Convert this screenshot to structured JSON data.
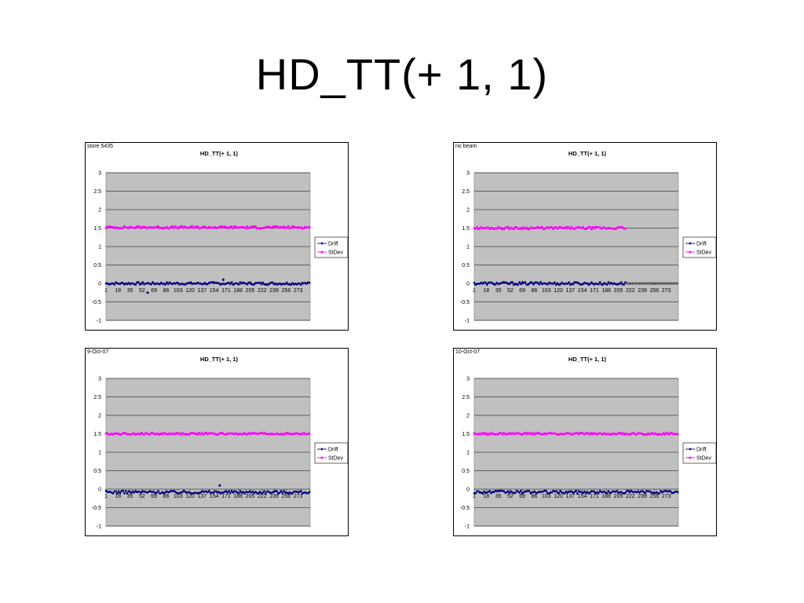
{
  "slide": {
    "title": "HD_TT(+ 1, 1)"
  },
  "colors": {
    "drift": "#000080",
    "stdev": "#FF00FF",
    "plot_bg": "#C0C0C0",
    "grid": "#000000"
  },
  "chart_data": [
    {
      "type": "line",
      "tag": "store 5435",
      "title": "HD_TT(+ 1, 1)",
      "x_tick_labels": [
        "1",
        "18",
        "35",
        "52",
        "69",
        "86",
        "103",
        "120",
        "137",
        "154",
        "171",
        "188",
        "205",
        "222",
        "239",
        "256",
        "273"
      ],
      "x_range": [
        1,
        290
      ],
      "ylim": [
        -1,
        3
      ],
      "y_ticks": [
        "3",
        "2.5",
        "2",
        "1.5",
        "1",
        "0.5",
        "0",
        "-0.5",
        "-1"
      ],
      "grid": true,
      "legend_position": "right",
      "series": [
        {
          "name": "Drift",
          "points_end": 290,
          "noise": 0.035,
          "base": 0.0,
          "annotations": [
            {
              "x": 60,
              "y": -0.25
            },
            {
              "x": 167,
              "y": 0.1
            }
          ]
        },
        {
          "name": "StDev",
          "points_end": 290,
          "noise": 0.03,
          "base": 1.52
        }
      ]
    },
    {
      "type": "line",
      "tag": "no beam",
      "title": "HD_TT(+ 1, 1)",
      "x_tick_labels": [
        "1",
        "18",
        "35",
        "52",
        "69",
        "86",
        "103",
        "120",
        "137",
        "154",
        "171",
        "188",
        "205",
        "222",
        "239",
        "256",
        "273"
      ],
      "x_range": [
        1,
        290
      ],
      "ylim": [
        -1,
        3
      ],
      "y_ticks": [
        "3",
        "2.5",
        "2",
        "1.5",
        "1",
        "0.5",
        "0",
        "-0.5",
        "-1"
      ],
      "grid": true,
      "legend_position": "right",
      "series": [
        {
          "name": "Drift",
          "points_end": 215,
          "noise": 0.04,
          "base": 0.0,
          "zero_fill_to": 290
        },
        {
          "name": "StDev",
          "points_end": 215,
          "noise": 0.03,
          "base": 1.5
        }
      ]
    },
    {
      "type": "line",
      "tag": "9-Oct-07",
      "title": "HD_TT(+ 1, 1)",
      "x_tick_labels": [
        "1",
        "18",
        "35",
        "52",
        "69",
        "86",
        "103",
        "120",
        "137",
        "154",
        "171",
        "188",
        "205",
        "222",
        "239",
        "256",
        "273"
      ],
      "x_range": [
        1,
        290
      ],
      "ylim": [
        -1,
        3
      ],
      "y_ticks": [
        "3",
        "2.5",
        "2",
        "1.5",
        "1",
        "0.5",
        "0",
        "-0.5",
        "-1"
      ],
      "grid": true,
      "legend_position": "right",
      "series": [
        {
          "name": "Drift",
          "points_end": 290,
          "noise": 0.04,
          "base": -0.08,
          "annotations": [
            {
              "x": 162,
              "y": 0.1
            }
          ]
        },
        {
          "name": "StDev",
          "points_end": 290,
          "noise": 0.025,
          "base": 1.5
        }
      ]
    },
    {
      "type": "line",
      "tag": "10-Oct-07",
      "title": "HD_TT(+ 1, 1)",
      "x_tick_labels": [
        "1",
        "18",
        "35",
        "52",
        "69",
        "86",
        "103",
        "120",
        "137",
        "154",
        "171",
        "188",
        "205",
        "222",
        "239",
        "256",
        "273"
      ],
      "x_range": [
        1,
        290
      ],
      "ylim": [
        -1,
        3
      ],
      "y_ticks": [
        "3",
        "2.5",
        "2",
        "1.5",
        "1",
        "0.5",
        "0",
        "-0.5",
        "-1"
      ],
      "grid": true,
      "legend_position": "right",
      "series": [
        {
          "name": "Drift",
          "points_end": 290,
          "noise": 0.04,
          "base": -0.08
        },
        {
          "name": "StDev",
          "points_end": 290,
          "noise": 0.025,
          "base": 1.5
        }
      ]
    }
  ]
}
